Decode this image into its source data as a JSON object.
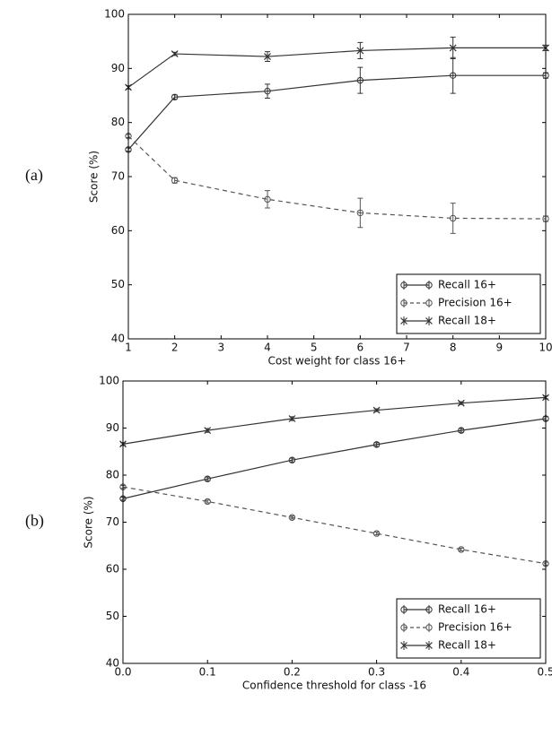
{
  "chart_data": [
    {
      "type": "line",
      "panel_label": "(a)",
      "xlabel": "Cost weight for class 16+",
      "ylabel": "Score (%)",
      "x": [
        1,
        2,
        4,
        6,
        8,
        10
      ],
      "xlim": [
        1,
        10
      ],
      "xticks": [
        1,
        2,
        3,
        4,
        5,
        6,
        7,
        8,
        9,
        10
      ],
      "ylim": [
        40,
        100
      ],
      "yticks": [
        40,
        50,
        60,
        70,
        80,
        90,
        100
      ],
      "legend": "lower right",
      "series": [
        {
          "name": "Recall 16+",
          "color": "#333333",
          "marker": "o",
          "linestyle": "solid",
          "values": [
            75,
            84.7,
            85.8,
            87.8,
            88.7,
            88.7
          ],
          "errors": [
            0.3,
            0.4,
            1.3,
            2.4,
            3.3,
            0.5
          ]
        },
        {
          "name": "Precision 16+",
          "color": "#555555",
          "marker": "o",
          "linestyle": "dashed",
          "values": [
            77.5,
            69.3,
            65.8,
            63.3,
            62.3,
            62.2
          ],
          "errors": [
            0.3,
            0.5,
            1.6,
            2.7,
            2.8,
            0.5
          ]
        },
        {
          "name": "Recall 18+",
          "color": "#333333",
          "marker": "x",
          "linestyle": "solid",
          "values": [
            86.5,
            92.7,
            92.2,
            93.3,
            93.8,
            93.8
          ],
          "errors": [
            0.3,
            0.3,
            0.9,
            1.5,
            2,
            0.5
          ]
        }
      ]
    },
    {
      "type": "line",
      "panel_label": "(b)",
      "xlabel": "Confidence threshold for class -16",
      "ylabel": "Score (%)",
      "x": [
        0,
        0.1,
        0.2,
        0.3,
        0.4,
        0.5
      ],
      "xlim": [
        0,
        0.5
      ],
      "xticks": [
        {
          "value": 0,
          "label": "0.0"
        },
        0.1,
        0.2,
        0.3,
        0.4,
        0.5
      ],
      "ylim": [
        40,
        100
      ],
      "yticks": [
        40,
        50,
        60,
        70,
        80,
        90,
        100
      ],
      "legend": "lower right",
      "series": [
        {
          "name": "Recall 16+",
          "color": "#333333",
          "marker": "o",
          "linestyle": "solid",
          "values": [
            75,
            79.2,
            83.2,
            86.5,
            89.5,
            92
          ],
          "errors": [
            0.3,
            0.4,
            0.4,
            0.4,
            0.4,
            0.4
          ]
        },
        {
          "name": "Precision 16+",
          "color": "#555555",
          "marker": "o",
          "linestyle": "dashed",
          "values": [
            77.5,
            74.4,
            71,
            67.6,
            64.2,
            61.2
          ],
          "errors": [
            0.3,
            0.3,
            0.3,
            0.3,
            0.3,
            0.3
          ]
        },
        {
          "name": "Recall 18+",
          "color": "#333333",
          "marker": "x",
          "linestyle": "solid",
          "values": [
            86.6,
            89.5,
            92,
            93.8,
            95.3,
            96.5
          ],
          "errors": [
            0.3,
            0.4,
            0.4,
            0.3,
            0.3,
            0.3
          ]
        }
      ]
    }
  ]
}
